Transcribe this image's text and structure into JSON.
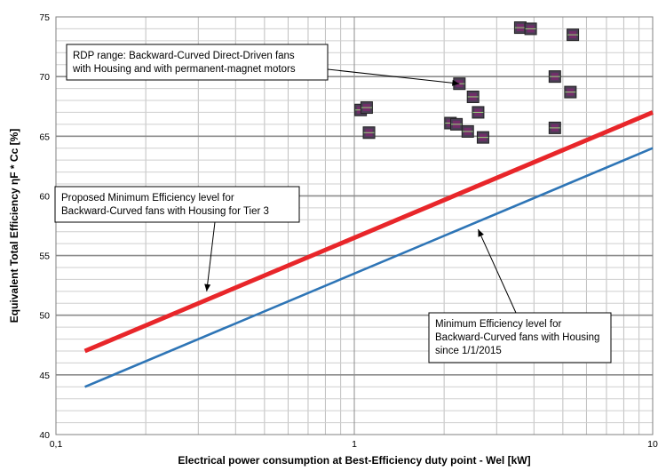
{
  "chart_data": {
    "type": "scatter",
    "xlabel": "Electrical power consumption at Best-Efficiency duty point - Wel [kW]",
    "ylabel": "Equivalent Total Efficiency ηF * Cc [%]",
    "xscale": "log",
    "xlim": [
      0.1,
      10
    ],
    "ylim": [
      40,
      75
    ],
    "x_ticks": [
      "0,1",
      "1",
      "10"
    ],
    "y_ticks": [
      "40",
      "45",
      "50",
      "55",
      "60",
      "65",
      "70",
      "75"
    ],
    "grid": true,
    "legend": "none",
    "series": [
      {
        "kind": "points",
        "color": "#7a2a6e",
        "points": [
          {
            "x": 1.05,
            "y": 67.2
          },
          {
            "x": 1.1,
            "y": 67.4
          },
          {
            "x": 1.12,
            "y": 65.3
          },
          {
            "x": 2.1,
            "y": 66.1
          },
          {
            "x": 2.2,
            "y": 66.0
          },
          {
            "x": 2.25,
            "y": 69.4
          },
          {
            "x": 2.4,
            "y": 65.4
          },
          {
            "x": 2.5,
            "y": 68.3
          },
          {
            "x": 2.6,
            "y": 67.0
          },
          {
            "x": 2.7,
            "y": 64.9
          },
          {
            "x": 3.6,
            "y": 74.1
          },
          {
            "x": 3.9,
            "y": 74.0
          },
          {
            "x": 4.7,
            "y": 70.0
          },
          {
            "x": 4.7,
            "y": 65.7
          },
          {
            "x": 5.3,
            "y": 68.7
          },
          {
            "x": 5.4,
            "y": 73.5
          }
        ]
      },
      {
        "kind": "line",
        "color": "#e8262a",
        "points": [
          {
            "x": 0.125,
            "y": 47.0
          },
          {
            "x": 10,
            "y": 67.0
          }
        ]
      },
      {
        "kind": "line",
        "color": "#2e75b6",
        "points": [
          {
            "x": 0.125,
            "y": 44.0
          },
          {
            "x": 10,
            "y": 64.0
          }
        ]
      }
    ],
    "annotations": [
      {
        "lines": [
          "RDP range: Backward-Curved Direct-Driven fans",
          "with Housing and with permanent-magnet motors"
        ],
        "arrow_to": {
          "x": 2.25,
          "y": 69.4
        }
      },
      {
        "lines": [
          "Proposed Minimum Efficiency level for",
          "Backward-Curved fans with Housing for Tier 3"
        ],
        "arrow_to": {
          "x": 0.32,
          "y": 52.0
        }
      },
      {
        "lines": [
          "Minimum Efficiency level for",
          "Backward-Curved fans with Housing",
          "since 1/1/2015"
        ],
        "arrow_to": {
          "x": 2.6,
          "y": 57.2
        }
      }
    ]
  }
}
